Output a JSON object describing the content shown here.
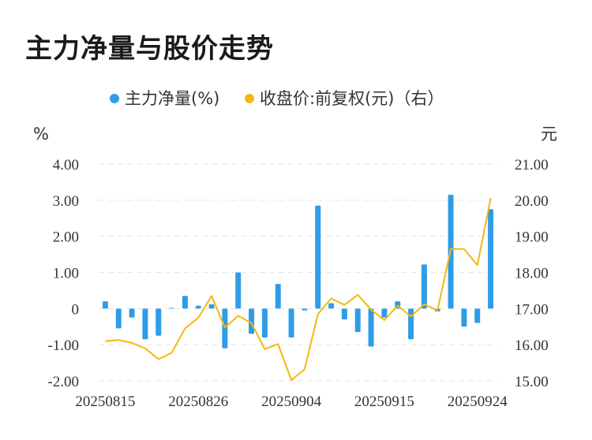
{
  "title": "主力净量与股价走势",
  "colors": {
    "bar": "#2f9ce8",
    "line": "#f5b80f",
    "grid": "#e6e6e6"
  },
  "chart_data": {
    "type": "bar+line",
    "title": "主力净量与股价走势",
    "legend": [
      "主力净量(%)",
      "收盘价:前复权(元)（右）"
    ],
    "left_unit": "%",
    "right_unit": "元",
    "left_ticks": [
      "4.00",
      "3.00",
      "2.00",
      "1.00",
      "0",
      "-1.00",
      "-2.00"
    ],
    "right_ticks": [
      "21.00",
      "20.00",
      "19.00",
      "18.00",
      "17.00",
      "16.00",
      "15.00"
    ],
    "ylim_left": [
      -2,
      4
    ],
    "ylim_right": [
      15,
      21
    ],
    "x_tick_labels": [
      "20250815",
      "20250826",
      "20250904",
      "20250915",
      "20250924"
    ],
    "x_tick_index": [
      0,
      7,
      14,
      21,
      28
    ],
    "series": [
      {
        "name": "主力净量(%)",
        "type": "bar",
        "axis": "left",
        "values": [
          0.2,
          -0.55,
          -0.25,
          -0.85,
          -0.75,
          0.0,
          0.35,
          0.08,
          0.12,
          -1.1,
          1.0,
          -0.7,
          -0.8,
          0.68,
          -0.8,
          -0.05,
          2.85,
          0.15,
          -0.3,
          -0.65,
          -1.05,
          -0.25,
          0.2,
          -0.85,
          1.22,
          -0.08,
          3.15,
          -0.5,
          -0.4,
          2.75
        ]
      },
      {
        "name": "收盘价:前复权(元)（右）",
        "type": "line",
        "axis": "right",
        "values": [
          16.1,
          16.13,
          16.05,
          15.9,
          15.6,
          15.78,
          16.45,
          16.75,
          17.35,
          16.48,
          16.8,
          16.6,
          15.88,
          16.02,
          15.02,
          15.32,
          16.85,
          17.28,
          17.1,
          17.38,
          16.97,
          16.68,
          17.08,
          16.78,
          17.12,
          16.95,
          18.65,
          18.65,
          18.2,
          20.05
        ]
      }
    ]
  }
}
